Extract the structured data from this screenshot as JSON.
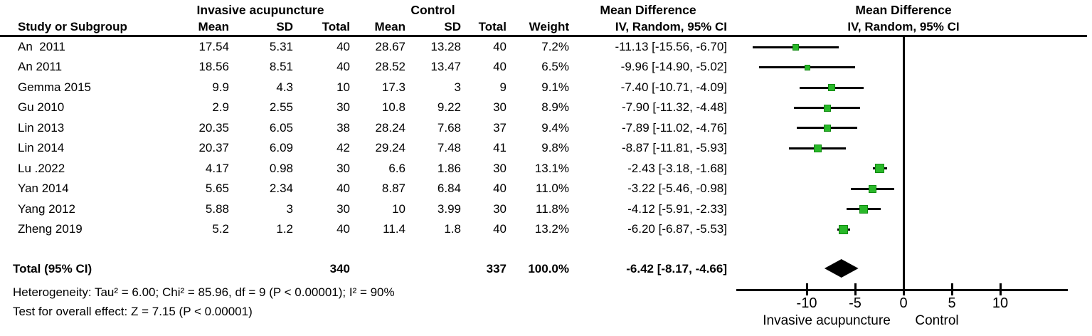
{
  "header": {
    "group_left": "Invasive acupuncture",
    "group_control": "Control",
    "md_text_col_title": "Mean Difference",
    "md_text_col_sub": "IV, Random, 95% CI",
    "md_plot_title": "Mean Difference",
    "md_plot_sub": "IV, Random, 95% CI",
    "col_study": "Study or Subgroup",
    "col_mean_t": "Mean",
    "col_sd_t": "SD",
    "col_total_t": "Total",
    "col_mean_c": "Mean",
    "col_sd_c": "SD",
    "col_total_c": "Total",
    "col_weight": "Weight"
  },
  "footnotes": {
    "heterogeneity": "Heterogeneity: Tau² = 6.00; Chi² = 85.96, df = 9 (P < 0.00001); I² = 90%",
    "overall_effect": "Test for overall effect: Z = 7.15 (P < 0.00001)"
  },
  "axis_labels": {
    "favours_left": "Invasive acupuncture",
    "favours_right": "Control"
  },
  "chart_data": {
    "type": "scatter",
    "subtype": "forest-plot-mean-difference",
    "effect_measure": "IV, Random, 95% CI",
    "x_axis": {
      "ticks": [
        -10,
        -5,
        0,
        5,
        10
      ],
      "range": [
        -17.3,
        17.0
      ],
      "zero_line": 0
    },
    "legend_position": "none",
    "colors": {
      "marker_fill": "#29b829",
      "marker_border": "#0f8a0f",
      "ci_line": "#000000",
      "diamond": "#000000"
    },
    "studies": [
      {
        "study": "An  2011",
        "mean_t": "17.54",
        "sd_t": "5.31",
        "n_t": "40",
        "mean_c": "28.67",
        "sd_c": "13.28",
        "n_c": "40",
        "weight": "7.2%",
        "weight_pct": 7.2,
        "ci_label": "-11.13 [-15.56, -6.70]",
        "md": -11.13,
        "lo": -15.56,
        "hi": -6.7
      },
      {
        "study": "An 2011",
        "mean_t": "18.56",
        "sd_t": "8.51",
        "n_t": "40",
        "mean_c": "28.52",
        "sd_c": "13.47",
        "n_c": "40",
        "weight": "6.5%",
        "weight_pct": 6.5,
        "ci_label": "-9.96 [-14.90, -5.02]",
        "md": -9.96,
        "lo": -14.9,
        "hi": -5.02
      },
      {
        "study": "Gemma 2015",
        "mean_t": "9.9",
        "sd_t": "4.3",
        "n_t": "10",
        "mean_c": "17.3",
        "sd_c": "3",
        "n_c": "9",
        "weight": "9.1%",
        "weight_pct": 9.1,
        "ci_label": "-7.40 [-10.71, -4.09]",
        "md": -7.4,
        "lo": -10.71,
        "hi": -4.09
      },
      {
        "study": "Gu 2010",
        "mean_t": "2.9",
        "sd_t": "2.55",
        "n_t": "30",
        "mean_c": "10.8",
        "sd_c": "9.22",
        "n_c": "30",
        "weight": "8.9%",
        "weight_pct": 8.9,
        "ci_label": "-7.90 [-11.32, -4.48]",
        "md": -7.9,
        "lo": -11.32,
        "hi": -4.48
      },
      {
        "study": "Lin 2013",
        "mean_t": "20.35",
        "sd_t": "6.05",
        "n_t": "38",
        "mean_c": "28.24",
        "sd_c": "7.68",
        "n_c": "37",
        "weight": "9.4%",
        "weight_pct": 9.4,
        "ci_label": "-7.89 [-11.02, -4.76]",
        "md": -7.89,
        "lo": -11.02,
        "hi": -4.76
      },
      {
        "study": "Lin 2014",
        "mean_t": "20.37",
        "sd_t": "6.09",
        "n_t": "42",
        "mean_c": "29.24",
        "sd_c": "7.48",
        "n_c": "41",
        "weight": "9.8%",
        "weight_pct": 9.8,
        "ci_label": "-8.87 [-11.81, -5.93]",
        "md": -8.87,
        "lo": -11.81,
        "hi": -5.93
      },
      {
        "study": "Lu .2022",
        "mean_t": "4.17",
        "sd_t": "0.98",
        "n_t": "30",
        "mean_c": "6.6",
        "sd_c": "1.86",
        "n_c": "30",
        "weight": "13.1%",
        "weight_pct": 13.1,
        "ci_label": "-2.43 [-3.18, -1.68]",
        "md": -2.43,
        "lo": -3.18,
        "hi": -1.68
      },
      {
        "study": "Yan 2014",
        "mean_t": "5.65",
        "sd_t": "2.34",
        "n_t": "40",
        "mean_c": "8.87",
        "sd_c": "6.84",
        "n_c": "40",
        "weight": "11.0%",
        "weight_pct": 11.0,
        "ci_label": "-3.22 [-5.46, -0.98]",
        "md": -3.22,
        "lo": -5.46,
        "hi": -0.98
      },
      {
        "study": "Yang 2012",
        "mean_t": "5.88",
        "sd_t": "3",
        "n_t": "30",
        "mean_c": "10",
        "sd_c": "3.99",
        "n_c": "30",
        "weight": "11.8%",
        "weight_pct": 11.8,
        "ci_label": "-4.12 [-5.91, -2.33]",
        "md": -4.12,
        "lo": -5.91,
        "hi": -2.33
      },
      {
        "study": "Zheng 2019",
        "mean_t": "5.2",
        "sd_t": "1.2",
        "n_t": "40",
        "mean_c": "11.4",
        "sd_c": "1.8",
        "n_c": "40",
        "weight": "13.2%",
        "weight_pct": 13.2,
        "ci_label": "-6.20 [-6.87, -5.53]",
        "md": -6.2,
        "lo": -6.87,
        "hi": -5.53
      }
    ],
    "total": {
      "label": "Total (95% CI)",
      "n_t": "340",
      "n_c": "337",
      "weight": "100.0%",
      "ci_label": "-6.42 [-8.17, -4.66]",
      "md": -6.42,
      "lo": -8.17,
      "hi": -4.66
    }
  }
}
